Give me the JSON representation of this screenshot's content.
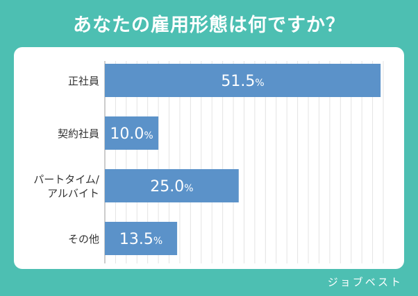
{
  "title": "あなたの雇用形態は何ですか？",
  "watermark": "ジョブベスト",
  "colors": {
    "background": "#4dbfb2",
    "card": "#ffffff",
    "bar": "#5b92c9",
    "grid": "#e3e3e3",
    "axis": "#9a9a9a",
    "category_text": "#333333",
    "value_text": "#ffffff"
  },
  "chart_data": {
    "type": "bar",
    "orientation": "horizontal",
    "title": "あなたの雇用形態は何ですか？",
    "categories": [
      [
        "正社員"
      ],
      [
        "契約社員"
      ],
      [
        "パートタイム/",
        "アルバイト"
      ],
      [
        "その他"
      ]
    ],
    "values": [
      51.5,
      10.0,
      25.0,
      13.5
    ],
    "value_labels": [
      "51.5",
      "10.0",
      "25.0",
      "13.5"
    ],
    "unit": "%",
    "xlim": [
      0,
      52
    ],
    "grid": true,
    "legend": "none"
  }
}
